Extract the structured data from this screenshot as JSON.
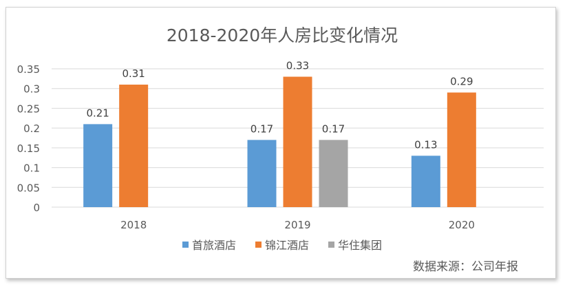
{
  "chart_data": {
    "type": "bar",
    "title": "2018-2020年人房比变化情况",
    "categories": [
      "2018",
      "2019",
      "2020"
    ],
    "series": [
      {
        "name": "首旅酒店",
        "color": "#5b9bd5",
        "values": [
          0.21,
          0.17,
          0.13
        ]
      },
      {
        "name": "锦江酒店",
        "color": "#ed7d31",
        "values": [
          0.31,
          0.33,
          0.29
        ]
      },
      {
        "name": "华住集团",
        "color": "#a5a5a5",
        "values": [
          null,
          0.17,
          null
        ]
      }
    ],
    "yticks": [
      "0",
      "0.05",
      "0.1",
      "0.15",
      "0.2",
      "0.25",
      "0.3",
      "0.35"
    ],
    "ylim": [
      0,
      0.35
    ],
    "grid": true,
    "legend": "bottom",
    "source": "数据来源：公司年报"
  }
}
